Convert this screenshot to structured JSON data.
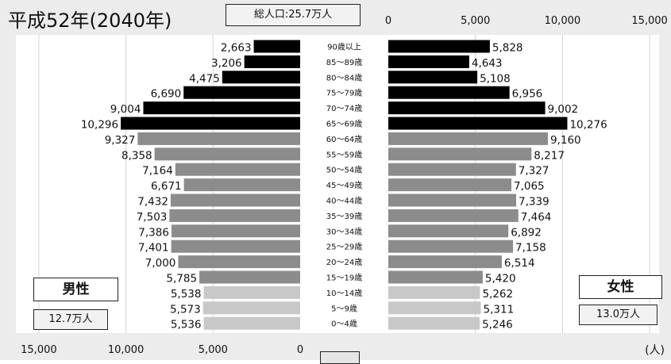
{
  "header": {
    "title": "平成52年(2040年)",
    "total_population": "総人口:25.7万人"
  },
  "male": {
    "label": "男性",
    "total": "12.7万人"
  },
  "female": {
    "label": "女性",
    "total": "13.0万人"
  },
  "unit_label": "(人)",
  "colors": {
    "elderly": "#000000",
    "working": "#8c8c8c",
    "young": "#c8c8c8",
    "background": "#ececec"
  },
  "chart_data": {
    "type": "bar",
    "orientation": "population-pyramid",
    "categories": [
      "90歳以上",
      "85〜89歳",
      "80〜84歳",
      "75〜79歳",
      "70〜74歳",
      "65〜69歳",
      "60〜64歳",
      "55〜59歳",
      "50〜54歳",
      "45〜49歳",
      "40〜44歳",
      "35〜39歳",
      "30〜34歳",
      "25〜29歳",
      "20〜24歳",
      "15〜19歳",
      "10〜14歳",
      "5〜9歳",
      "0〜4歳"
    ],
    "series": [
      {
        "name": "男性",
        "values": [
          2663,
          3206,
          4475,
          6690,
          9004,
          10296,
          9327,
          8358,
          7164,
          6671,
          7432,
          7503,
          7386,
          7401,
          7000,
          5785,
          5538,
          5573,
          5536
        ]
      },
      {
        "name": "女性",
        "values": [
          5828,
          4643,
          5108,
          6956,
          9002,
          10276,
          9160,
          8217,
          7327,
          7065,
          7339,
          7464,
          6892,
          7158,
          6514,
          5420,
          5262,
          5311,
          5246
        ]
      }
    ],
    "group_colors": [
      "elderly",
      "elderly",
      "elderly",
      "elderly",
      "elderly",
      "elderly",
      "working",
      "working",
      "working",
      "working",
      "working",
      "working",
      "working",
      "working",
      "working",
      "working",
      "young",
      "young",
      "young"
    ],
    "male_axis_ticks": [
      "15,000",
      "10,000",
      "5,000",
      "0"
    ],
    "female_axis_ticks": [
      "0",
      "5,000",
      "10,000",
      "15,000"
    ],
    "xlim": [
      0,
      15000
    ],
    "grid": true
  }
}
